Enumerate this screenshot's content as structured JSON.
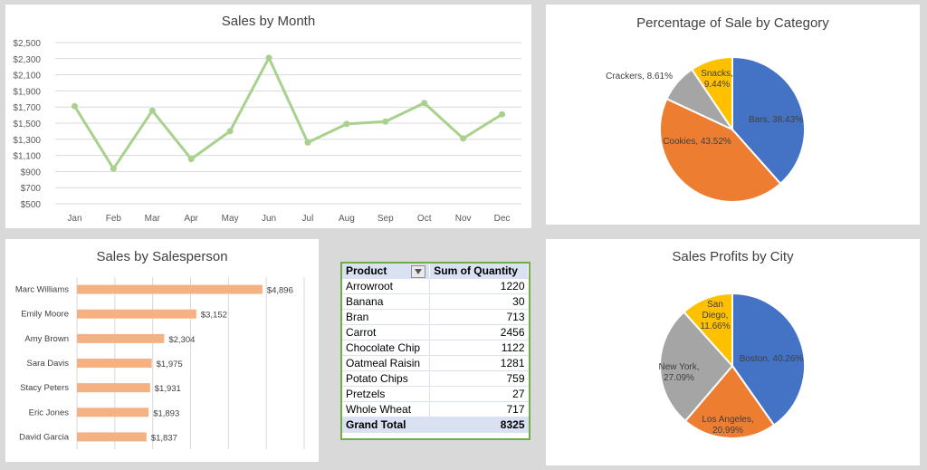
{
  "line_chart": {
    "title": "Sales by Month",
    "chart_data": {
      "type": "line",
      "categories": [
        "Jan",
        "Feb",
        "Mar",
        "Apr",
        "May",
        "Jun",
        "Jul",
        "Aug",
        "Sep",
        "Oct",
        "Nov",
        "Dec"
      ],
      "values": [
        1710,
        935,
        1655,
        1055,
        1400,
        2310,
        1260,
        1490,
        1520,
        1750,
        1310,
        1610
      ],
      "ylim": [
        500,
        2500
      ],
      "yticks": [
        "$500",
        "$700",
        "$900",
        "$1,100",
        "$1,300",
        "$1,500",
        "$1,700",
        "$1,900",
        "$2,100",
        "$2,300",
        "$2,500"
      ],
      "color": "#a9d18e",
      "grid": true
    }
  },
  "category_pie": {
    "title": "Percentage of Sale by Category",
    "chart_data": {
      "type": "pie",
      "slices": [
        {
          "label": "Bars, 38.43%",
          "value": 38.43,
          "color": "#4472c4"
        },
        {
          "label": "Cookies, 43.52%",
          "value": 43.52,
          "color": "#ed7d31"
        },
        {
          "label": "Crackers, 8.61%",
          "value": 8.61,
          "color": "#a5a5a5"
        },
        {
          "label": "Snacks, 9.44%",
          "value": 9.44,
          "color": "#ffc000"
        }
      ]
    }
  },
  "salesperson_chart": {
    "title": "Sales by Salesperson",
    "chart_data": {
      "type": "bar",
      "orientation": "horizontal",
      "categories": [
        "Marc Williams",
        "Emily Moore",
        "Amy Brown",
        "Sara Davis",
        "Stacy Peters",
        "Eric Jones",
        "David Garcia"
      ],
      "values": [
        4896,
        3152,
        2304,
        1975,
        1931,
        1893,
        1837
      ],
      "labels": [
        "$4,896",
        "$3,152",
        "$2,304",
        "$1,975",
        "$1,931",
        "$1,893",
        "$1,837"
      ],
      "xlim": [
        0,
        6000
      ],
      "color": "#f4b183",
      "grid": true
    }
  },
  "pivot": {
    "header_product": "Product",
    "header_qty": "Sum of Quantity",
    "rows": [
      {
        "product": "Arrowroot",
        "qty": "1220"
      },
      {
        "product": "Banana",
        "qty": "30"
      },
      {
        "product": "Bran",
        "qty": "713"
      },
      {
        "product": "Carrot",
        "qty": "2456"
      },
      {
        "product": "Chocolate Chip",
        "qty": "1122"
      },
      {
        "product": "Oatmeal Raisin",
        "qty": "1281"
      },
      {
        "product": "Potato Chips",
        "qty": "759"
      },
      {
        "product": "Pretzels",
        "qty": "27"
      },
      {
        "product": "Whole Wheat",
        "qty": "717"
      }
    ],
    "total_label": "Grand Total",
    "total_qty": "8325"
  },
  "city_pie": {
    "title": "Sales Profits  by City",
    "chart_data": {
      "type": "pie",
      "slices": [
        {
          "label": "Boston, 40.26%",
          "value": 40.26,
          "color": "#4472c4"
        },
        {
          "label": "Los Angeles, 20.99%",
          "value": 20.99,
          "color": "#ed7d31"
        },
        {
          "label": "New York, 27.09%",
          "value": 27.09,
          "color": "#a5a5a5"
        },
        {
          "label": "San Diego, 11.66%",
          "value": 11.66,
          "color": "#ffc000"
        }
      ]
    }
  }
}
